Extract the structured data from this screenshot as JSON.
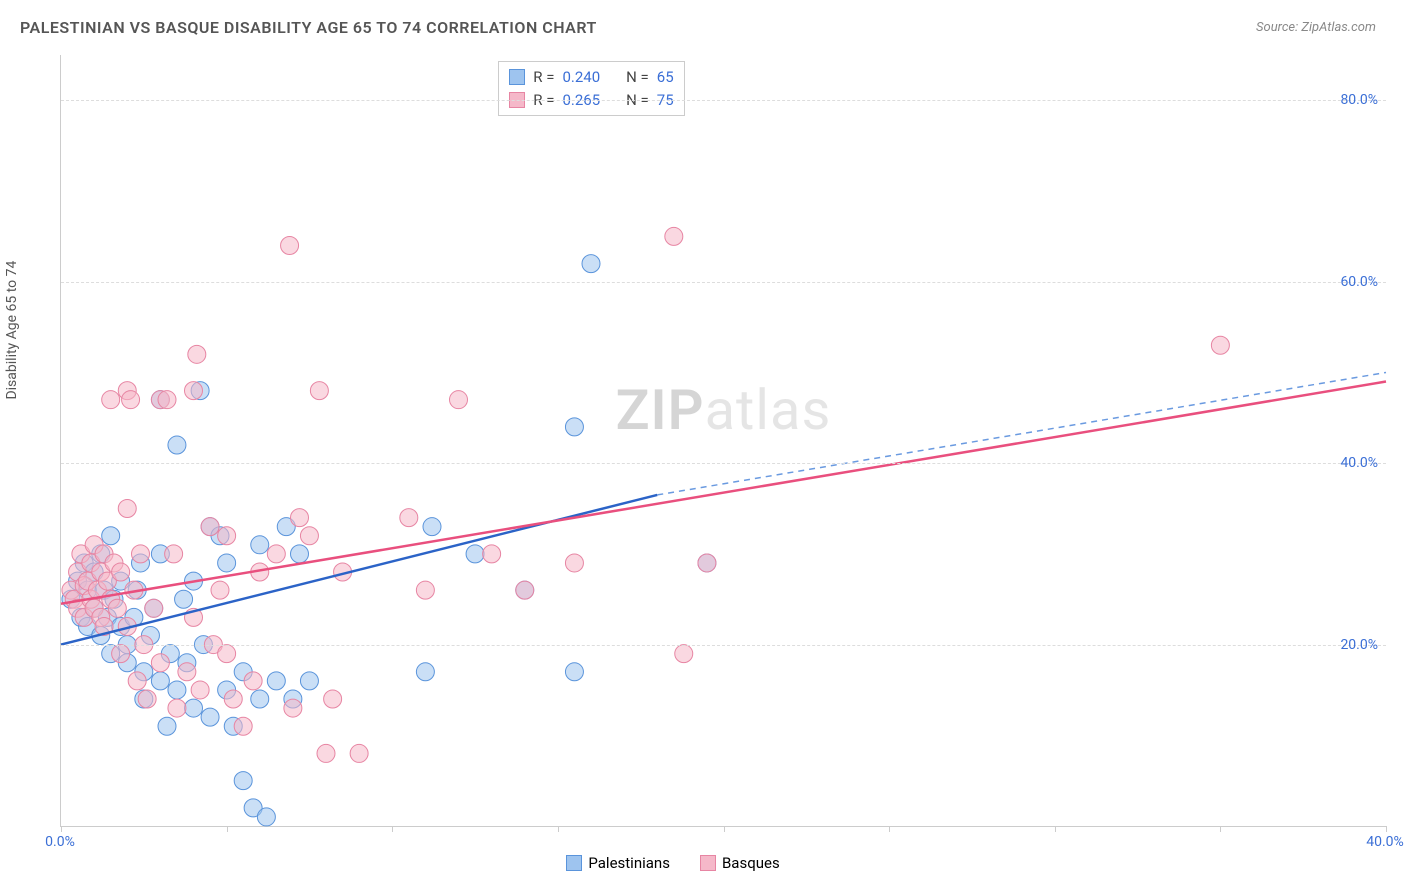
{
  "title": "PALESTINIAN VS BASQUE DISABILITY AGE 65 TO 74 CORRELATION CHART",
  "source": "Source: ZipAtlas.com",
  "ylabel": "Disability Age 65 to 74",
  "watermark_zip": "ZIP",
  "watermark_atlas": "atlas",
  "type": "scatter",
  "xlim": [
    0,
    40
  ],
  "ylim": [
    0,
    85
  ],
  "x_ticks": [
    0,
    5,
    10,
    15,
    20,
    25,
    30,
    35,
    40
  ],
  "y_gridlines": [
    20,
    40,
    60,
    80
  ],
  "x_axis_labels": [
    {
      "value": 0,
      "label": "0.0%"
    },
    {
      "value": 40,
      "label": "40.0%"
    }
  ],
  "y_axis_labels": [
    {
      "value": 20,
      "label": "20.0%"
    },
    {
      "value": 40,
      "label": "40.0%"
    },
    {
      "value": 60,
      "label": "60.0%"
    },
    {
      "value": 80,
      "label": "80.0%"
    }
  ],
  "axis_label_color": "#3b6fd6",
  "grid_color": "#dddddd",
  "background_color": "#ffffff",
  "marker_radius": 9,
  "marker_opacity": 0.55,
  "series": [
    {
      "name": "Palestinians",
      "fill_color": "#9ec4ef",
      "stroke_color": "#5a94db",
      "line_color": "#2b63c7",
      "line_dash_color": "#6a9ae0",
      "r_label": "R =",
      "r_value": "0.240",
      "n_label": "N =",
      "n_value": "65",
      "trend": {
        "x1": 0,
        "y1": 20,
        "x2": 18,
        "y2": 36.5,
        "dash_x2": 40,
        "dash_y2": 50
      },
      "points": [
        [
          0.3,
          25
        ],
        [
          0.5,
          27
        ],
        [
          0.6,
          23
        ],
        [
          0.7,
          29
        ],
        [
          0.8,
          22
        ],
        [
          0.8,
          26
        ],
        [
          1.0,
          28
        ],
        [
          1.0,
          24
        ],
        [
          1.2,
          21
        ],
        [
          1.2,
          30
        ],
        [
          1.3,
          26
        ],
        [
          1.4,
          23
        ],
        [
          1.5,
          32
        ],
        [
          1.5,
          19
        ],
        [
          1.6,
          25
        ],
        [
          1.8,
          27
        ],
        [
          1.8,
          22
        ],
        [
          2.0,
          20
        ],
        [
          2.0,
          18
        ],
        [
          2.2,
          23
        ],
        [
          2.3,
          26
        ],
        [
          2.4,
          29
        ],
        [
          2.5,
          17
        ],
        [
          2.5,
          14
        ],
        [
          2.7,
          21
        ],
        [
          2.8,
          24
        ],
        [
          3.0,
          47
        ],
        [
          3.0,
          30
        ],
        [
          3.0,
          16
        ],
        [
          3.2,
          11
        ],
        [
          3.3,
          19
        ],
        [
          3.5,
          42
        ],
        [
          3.5,
          15
        ],
        [
          3.7,
          25
        ],
        [
          3.8,
          18
        ],
        [
          4.0,
          27
        ],
        [
          4.0,
          13
        ],
        [
          4.2,
          48
        ],
        [
          4.3,
          20
        ],
        [
          4.5,
          33
        ],
        [
          4.5,
          12
        ],
        [
          4.8,
          32
        ],
        [
          5.0,
          29
        ],
        [
          5.0,
          15
        ],
        [
          5.2,
          11
        ],
        [
          5.5,
          5
        ],
        [
          5.5,
          17
        ],
        [
          5.8,
          2
        ],
        [
          6.0,
          31
        ],
        [
          6.0,
          14
        ],
        [
          6.2,
          1
        ],
        [
          6.5,
          16
        ],
        [
          6.8,
          33
        ],
        [
          7.0,
          14
        ],
        [
          7.2,
          30
        ],
        [
          7.5,
          16
        ],
        [
          11.0,
          17
        ],
        [
          11.2,
          33
        ],
        [
          12.5,
          30
        ],
        [
          14.0,
          26
        ],
        [
          15.5,
          44
        ],
        [
          15.5,
          17
        ],
        [
          16.0,
          62
        ],
        [
          19.5,
          29
        ]
      ]
    },
    {
      "name": "Basques",
      "fill_color": "#f5b8c9",
      "stroke_color": "#e785a3",
      "line_color": "#e94f7e",
      "line_dash_color": "#f0a0b8",
      "r_label": "R =",
      "r_value": "0.265",
      "n_label": "N =",
      "n_value": "75",
      "trend": {
        "x1": 0,
        "y1": 24.5,
        "x2": 40,
        "y2": 49
      },
      "points": [
        [
          0.3,
          26
        ],
        [
          0.4,
          25
        ],
        [
          0.5,
          28
        ],
        [
          0.5,
          24
        ],
        [
          0.6,
          30
        ],
        [
          0.7,
          26.5
        ],
        [
          0.7,
          23
        ],
        [
          0.8,
          27
        ],
        [
          0.9,
          25
        ],
        [
          0.9,
          29
        ],
        [
          1.0,
          24
        ],
        [
          1.0,
          31
        ],
        [
          1.1,
          26
        ],
        [
          1.2,
          28
        ],
        [
          1.2,
          23
        ],
        [
          1.3,
          30
        ],
        [
          1.3,
          22
        ],
        [
          1.4,
          27
        ],
        [
          1.5,
          25
        ],
        [
          1.5,
          47
        ],
        [
          1.6,
          29
        ],
        [
          1.7,
          24
        ],
        [
          1.8,
          28
        ],
        [
          1.8,
          19
        ],
        [
          2.0,
          35
        ],
        [
          2.0,
          22
        ],
        [
          2.0,
          48
        ],
        [
          2.1,
          47
        ],
        [
          2.2,
          26
        ],
        [
          2.3,
          16
        ],
        [
          2.4,
          30
        ],
        [
          2.5,
          20
        ],
        [
          2.6,
          14
        ],
        [
          2.8,
          24
        ],
        [
          3.0,
          47
        ],
        [
          3.0,
          18
        ],
        [
          3.2,
          47
        ],
        [
          3.4,
          30
        ],
        [
          3.5,
          13
        ],
        [
          3.8,
          17
        ],
        [
          4.0,
          48
        ],
        [
          4.0,
          23
        ],
        [
          4.1,
          52
        ],
        [
          4.2,
          15
        ],
        [
          4.5,
          33
        ],
        [
          4.6,
          20
        ],
        [
          4.8,
          26
        ],
        [
          5.0,
          19
        ],
        [
          5.0,
          32
        ],
        [
          5.2,
          14
        ],
        [
          5.5,
          11
        ],
        [
          5.8,
          16
        ],
        [
          6.0,
          28
        ],
        [
          6.5,
          30
        ],
        [
          6.9,
          64
        ],
        [
          7.0,
          13
        ],
        [
          7.2,
          34
        ],
        [
          7.5,
          32
        ],
        [
          7.8,
          48
        ],
        [
          8.0,
          8
        ],
        [
          8.2,
          14
        ],
        [
          8.5,
          28
        ],
        [
          9.0,
          8
        ],
        [
          10.5,
          34
        ],
        [
          11.0,
          26
        ],
        [
          12.0,
          47
        ],
        [
          13.0,
          30
        ],
        [
          14.0,
          26
        ],
        [
          15.5,
          29
        ],
        [
          18.5,
          65
        ],
        [
          19.5,
          29
        ],
        [
          18.8,
          19
        ],
        [
          35.0,
          53
        ]
      ]
    }
  ]
}
